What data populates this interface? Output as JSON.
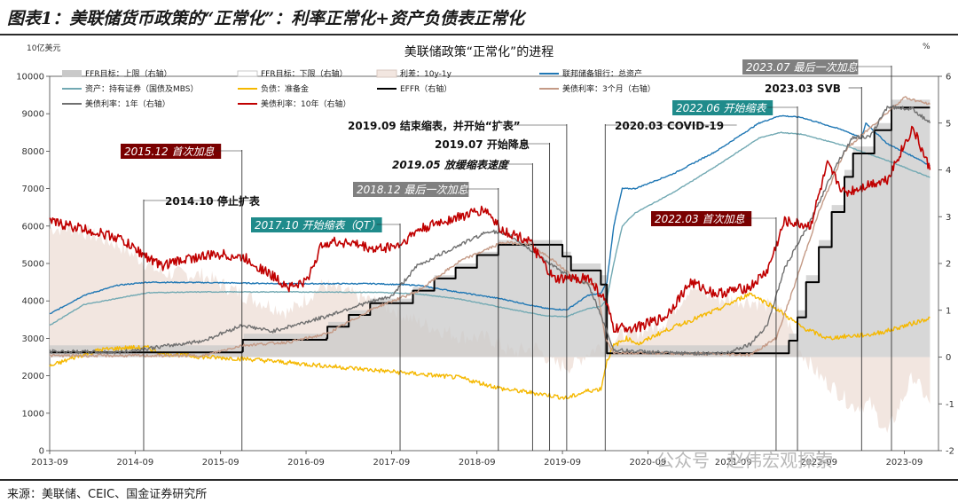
{
  "figure": {
    "title": "图表1：美联储货币政策的“正常化”：利率正常化+资产负债表正常化",
    "source": "来源：美联储、CEIC、国金证券研究所"
  },
  "watermark": "公众号 · 赵伟宏观探索",
  "chart_data": {
    "type": "line",
    "title": "美联储政策“正常化”的进程",
    "y_left_unit": "10亿美元",
    "y_right_unit": "%",
    "y_left_range": [
      0,
      10000
    ],
    "y_right_range": [
      -2,
      6
    ],
    "x_ticks": [
      "2013-09",
      "2014-09",
      "2015-09",
      "2016-09",
      "2017-09",
      "2018-09",
      "2019-09",
      "2020-09",
      "2021-09",
      "2022-09",
      "2023-09"
    ],
    "y_left_ticks": [
      "0",
      "1000",
      "2000",
      "3000",
      "4000",
      "5000",
      "6000",
      "7000",
      "8000",
      "9000",
      "10000"
    ],
    "y_right_ticks": [
      "-2",
      "-1",
      "0",
      "1",
      "2",
      "3",
      "4",
      "5",
      "6"
    ],
    "legend": [
      {
        "label": "FFR目标：上限（右轴）",
        "kind": "area",
        "color": "#c9c9c9"
      },
      {
        "label": "FFR目标：下限（右轴）",
        "kind": "line",
        "color": "#ffffff",
        "stroke": "#bbbbbb"
      },
      {
        "label": "利差：10y-1y",
        "kind": "area",
        "color": "#f2e6e0"
      },
      {
        "label": "联邦储备银行：总资产",
        "kind": "line",
        "color": "#1f77b4"
      },
      {
        "label": "资产：持有证券（国债及MBS）",
        "kind": "line",
        "color": "#72a9b3"
      },
      {
        "label": "负债：准备金",
        "kind": "line",
        "color": "#f5b800"
      },
      {
        "label": "EFFR（右轴）",
        "kind": "line",
        "color": "#000000"
      },
      {
        "label": "美债利率：3个月（右轴）",
        "kind": "line",
        "color": "#c49a86"
      },
      {
        "label": "美债利率：1年（右轴）",
        "kind": "line",
        "color": "#707070"
      },
      {
        "label": "美债利率：10年（右轴）",
        "kind": "line",
        "color": "#c00000"
      }
    ],
    "series": [
      {
        "name": "联邦储备银行：总资产",
        "axis": "left",
        "color": "#1f77b4",
        "x": [
          2013.7,
          2014.1,
          2014.5,
          2014.85,
          2015.5,
          2016.5,
          2017.5,
          2018.0,
          2018.5,
          2019.0,
          2019.5,
          2019.75,
          2020.0,
          2020.15,
          2020.22,
          2020.3,
          2020.4,
          2020.55,
          2021.0,
          2021.5,
          2022.0,
          2022.25,
          2022.5,
          2023.0,
          2023.2,
          2023.25,
          2023.5,
          2023.9,
          2024.0
        ],
        "y": [
          3650,
          4150,
          4420,
          4500,
          4490,
          4460,
          4460,
          4420,
          4230,
          4050,
          3800,
          3760,
          4150,
          4200,
          4500,
          6000,
          7000,
          7000,
          7400,
          8000,
          8750,
          8950,
          8900,
          8550,
          8350,
          8750,
          8200,
          7750,
          7600
        ]
      },
      {
        "name": "资产：持有证券（国债及MBS）",
        "axis": "left",
        "color": "#72a9b3",
        "x": [
          2013.7,
          2014.1,
          2014.85,
          2015.5,
          2016.5,
          2017.5,
          2018.0,
          2018.5,
          2019.0,
          2019.5,
          2019.75,
          2020.0,
          2020.15,
          2020.22,
          2020.3,
          2020.4,
          2020.55,
          2021.0,
          2021.5,
          2022.0,
          2022.25,
          2022.5,
          2023.0,
          2023.5,
          2024.0
        ],
        "y": [
          3350,
          3900,
          4220,
          4240,
          4240,
          4230,
          4190,
          4050,
          3820,
          3600,
          3580,
          3800,
          3850,
          4050,
          5000,
          6000,
          6350,
          6900,
          7600,
          8350,
          8500,
          8450,
          8150,
          7750,
          7300
        ]
      },
      {
        "name": "负债：准备金",
        "axis": "left",
        "color": "#f5b800",
        "x": [
          2013.7,
          2014.0,
          2014.3,
          2014.6,
          2014.85,
          2015.0,
          2015.5,
          2016.0,
          2016.5,
          2017.0,
          2017.5,
          2018.0,
          2018.5,
          2019.0,
          2019.5,
          2019.75,
          2020.0,
          2020.15,
          2020.22,
          2020.3,
          2020.45,
          2020.6,
          2020.8,
          2021.0,
          2021.5,
          2021.9,
          2022.2,
          2022.5,
          2022.8,
          2023.0,
          2023.3,
          2023.5,
          2023.8,
          2024.0
        ],
        "y": [
          2250,
          2500,
          2700,
          2750,
          2750,
          2600,
          2500,
          2450,
          2350,
          2250,
          2150,
          2050,
          1950,
          1650,
          1500,
          1400,
          1600,
          1650,
          2400,
          2800,
          3000,
          2850,
          3100,
          3300,
          3750,
          4200,
          3800,
          3300,
          3000,
          3050,
          3100,
          3200,
          3400,
          3550
        ]
      },
      {
        "name": "EFFR（右轴）",
        "axis": "right",
        "color": "#000000",
        "x": [
          2013.7,
          2015.95,
          2015.96,
          2016.94,
          2016.95,
          2017.2,
          2017.45,
          2017.95,
          2018.2,
          2018.45,
          2018.7,
          2018.95,
          2019.55,
          2019.7,
          2019.8,
          2020.15,
          2020.22,
          2022.2,
          2022.35,
          2022.45,
          2022.55,
          2022.7,
          2022.85,
          2023.0,
          2023.1,
          2023.35,
          2023.55,
          2024.0
        ],
        "y": [
          0.1,
          0.12,
          0.37,
          0.4,
          0.65,
          0.9,
          1.15,
          1.42,
          1.68,
          1.91,
          2.18,
          2.4,
          2.4,
          2.15,
          1.85,
          1.55,
          0.08,
          0.08,
          0.35,
          0.85,
          1.6,
          2.35,
          3.1,
          3.85,
          4.35,
          4.85,
          5.33,
          5.33
        ]
      },
      {
        "name": "美债利率：3个月（右轴）",
        "axis": "right",
        "color": "#c49a86",
        "x": [
          2013.7,
          2015.5,
          2015.95,
          2016.5,
          2016.95,
          2017.5,
          2018.0,
          2018.5,
          2019.0,
          2019.3,
          2019.6,
          2019.9,
          2020.1,
          2020.2,
          2020.3,
          2021.0,
          2021.9,
          2022.2,
          2022.4,
          2022.7,
          2023.0,
          2023.3,
          2023.7,
          2024.0
        ],
        "y": [
          0.03,
          0.03,
          0.25,
          0.32,
          0.5,
          1.05,
          1.4,
          2.05,
          2.45,
          2.42,
          2.05,
          1.6,
          1.55,
          0.4,
          0.1,
          0.08,
          0.05,
          0.4,
          1.45,
          3.1,
          4.4,
          4.9,
          5.55,
          5.4
        ]
      },
      {
        "name": "美债利率：1年（右轴）",
        "axis": "right",
        "color": "#707070",
        "x": [
          2013.7,
          2014.5,
          2015.0,
          2015.5,
          2015.95,
          2016.3,
          2016.9,
          2017.3,
          2017.7,
          2018.0,
          2018.5,
          2018.85,
          2019.1,
          2019.4,
          2019.7,
          2020.0,
          2020.15,
          2020.3,
          2021.0,
          2021.6,
          2021.9,
          2022.1,
          2022.3,
          2022.6,
          2022.9,
          2023.1,
          2023.3,
          2023.5,
          2023.8,
          2024.0
        ],
        "y": [
          0.12,
          0.1,
          0.22,
          0.35,
          0.68,
          0.55,
          0.85,
          1.1,
          1.3,
          1.95,
          2.4,
          2.7,
          2.58,
          2.2,
          1.8,
          1.55,
          0.9,
          0.15,
          0.08,
          0.08,
          0.28,
          0.7,
          1.9,
          2.9,
          4.1,
          4.7,
          4.7,
          5.35,
          5.3,
          5.0
        ]
      },
      {
        "name": "美债利率：10年（右轴）",
        "axis": "right",
        "color": "#c00000",
        "x": [
          2013.7,
          2013.95,
          2014.5,
          2015.0,
          2015.3,
          2015.7,
          2016.0,
          2016.5,
          2016.7,
          2016.9,
          2017.2,
          2017.5,
          2017.8,
          2018.0,
          2018.3,
          2018.8,
          2019.0,
          2019.3,
          2019.6,
          2020.0,
          2020.2,
          2020.3,
          2020.6,
          2020.9,
          2021.2,
          2021.5,
          2021.9,
          2022.1,
          2022.3,
          2022.6,
          2022.8,
          2023.0,
          2023.3,
          2023.5,
          2023.8,
          2024.0
        ],
        "y": [
          2.9,
          2.8,
          2.55,
          1.95,
          2.1,
          2.2,
          2.1,
          1.5,
          1.6,
          2.45,
          2.45,
          2.3,
          2.4,
          2.7,
          2.9,
          3.15,
          2.7,
          2.5,
          1.65,
          1.7,
          1.2,
          0.6,
          0.65,
          0.85,
          1.6,
          1.35,
          1.5,
          1.85,
          2.9,
          2.8,
          4.1,
          3.5,
          3.7,
          3.8,
          4.9,
          4.0
        ]
      }
    ],
    "spread_area": {
      "name": "利差：10y-1y",
      "axis": "right",
      "color": "#f2e6e0",
      "x": [
        2013.7,
        2014.0,
        2014.5,
        2015.0,
        2015.5,
        2016.0,
        2016.5,
        2016.9,
        2017.3,
        2017.7,
        2018.0,
        2018.5,
        2018.85,
        2019.1,
        2019.4,
        2019.6,
        2019.8,
        2020.0,
        2020.2,
        2020.3,
        2020.6,
        2020.9,
        2021.2,
        2021.5,
        2021.9,
        2022.1,
        2022.3,
        2022.5,
        2022.7,
        2022.9,
        2023.1,
        2023.3,
        2023.5,
        2023.8,
        2024.0
      ],
      "y": [
        2.75,
        2.75,
        2.4,
        1.8,
        1.75,
        1.3,
        0.95,
        1.55,
        1.3,
        1.05,
        0.75,
        0.45,
        0.4,
        0.1,
        0.2,
        -0.15,
        -0.2,
        0.1,
        0.3,
        0.4,
        0.55,
        0.75,
        1.5,
        1.25,
        1.2,
        1.1,
        0.9,
        0.1,
        -0.4,
        -0.7,
        -1.05,
        -1.0,
        -1.65,
        -0.4,
        -1.0
      ]
    },
    "ffr_upper_area": {
      "name": "FFR目标：上限（右轴）",
      "axis": "right",
      "color": "#c9c9c9",
      "x": [
        2013.7,
        2015.96,
        2015.97,
        2016.95,
        2016.96,
        2017.2,
        2017.45,
        2017.95,
        2018.2,
        2018.45,
        2018.7,
        2018.95,
        2019.55,
        2019.7,
        2019.8,
        2020.15,
        2020.22,
        2022.2,
        2022.35,
        2022.45,
        2022.55,
        2022.7,
        2022.85,
        2023.0,
        2023.1,
        2023.35,
        2023.55,
        2024.0
      ],
      "y": [
        0.25,
        0.25,
        0.5,
        0.5,
        0.75,
        1.0,
        1.25,
        1.5,
        1.75,
        2.0,
        2.25,
        2.5,
        2.5,
        2.25,
        2.0,
        1.75,
        0.25,
        0.25,
        0.5,
        1.0,
        1.75,
        2.5,
        3.25,
        4.0,
        4.5,
        5.0,
        5.5,
        5.5
      ]
    },
    "annotations": [
      {
        "label": "2014.10 停止扩表",
        "x": 2014.8,
        "style": "plain",
        "line_to": 2500
      },
      {
        "label": "2015.12 首次加息",
        "x": 2015.95,
        "style": "box-red",
        "line_to": 2600
      },
      {
        "label": "2017.10 开始缩表（QT）",
        "x": 2017.8,
        "style": "box-teal",
        "line_to": 2500
      },
      {
        "label": "2018.12 最后一次加息",
        "x": 2018.95,
        "style": "box-gray",
        "line_to": 5700
      },
      {
        "label": "2019.05 放缓缩表速度",
        "x": 2019.35,
        "style": "italic-bold",
        "line_to": 4500
      },
      {
        "label": "2019.07 开始降息",
        "x": 2019.55,
        "style": "plain",
        "line_to": 4300
      },
      {
        "label": "2019.09 结束缩表，并开始“扩表”",
        "x": 2019.75,
        "style": "plain",
        "line_to": 3800
      },
      {
        "label": "2020.03 COVID-19",
        "x": 2020.2,
        "style": "plain",
        "line_to": 3100
      },
      {
        "label": "2022.03 首次加息",
        "x": 2022.2,
        "style": "box-red",
        "line_to": 2600
      },
      {
        "label": "2022.06 开始缩表",
        "x": 2022.45,
        "style": "box-teal",
        "line_to": 9000
      },
      {
        "label": "2023.03 SVB",
        "x": 2023.2,
        "style": "plain",
        "line_to": 8800
      },
      {
        "label": "2023.07 最后一次加息",
        "x": 2023.55,
        "style": "box-gray",
        "line_to": 9200
      }
    ]
  }
}
